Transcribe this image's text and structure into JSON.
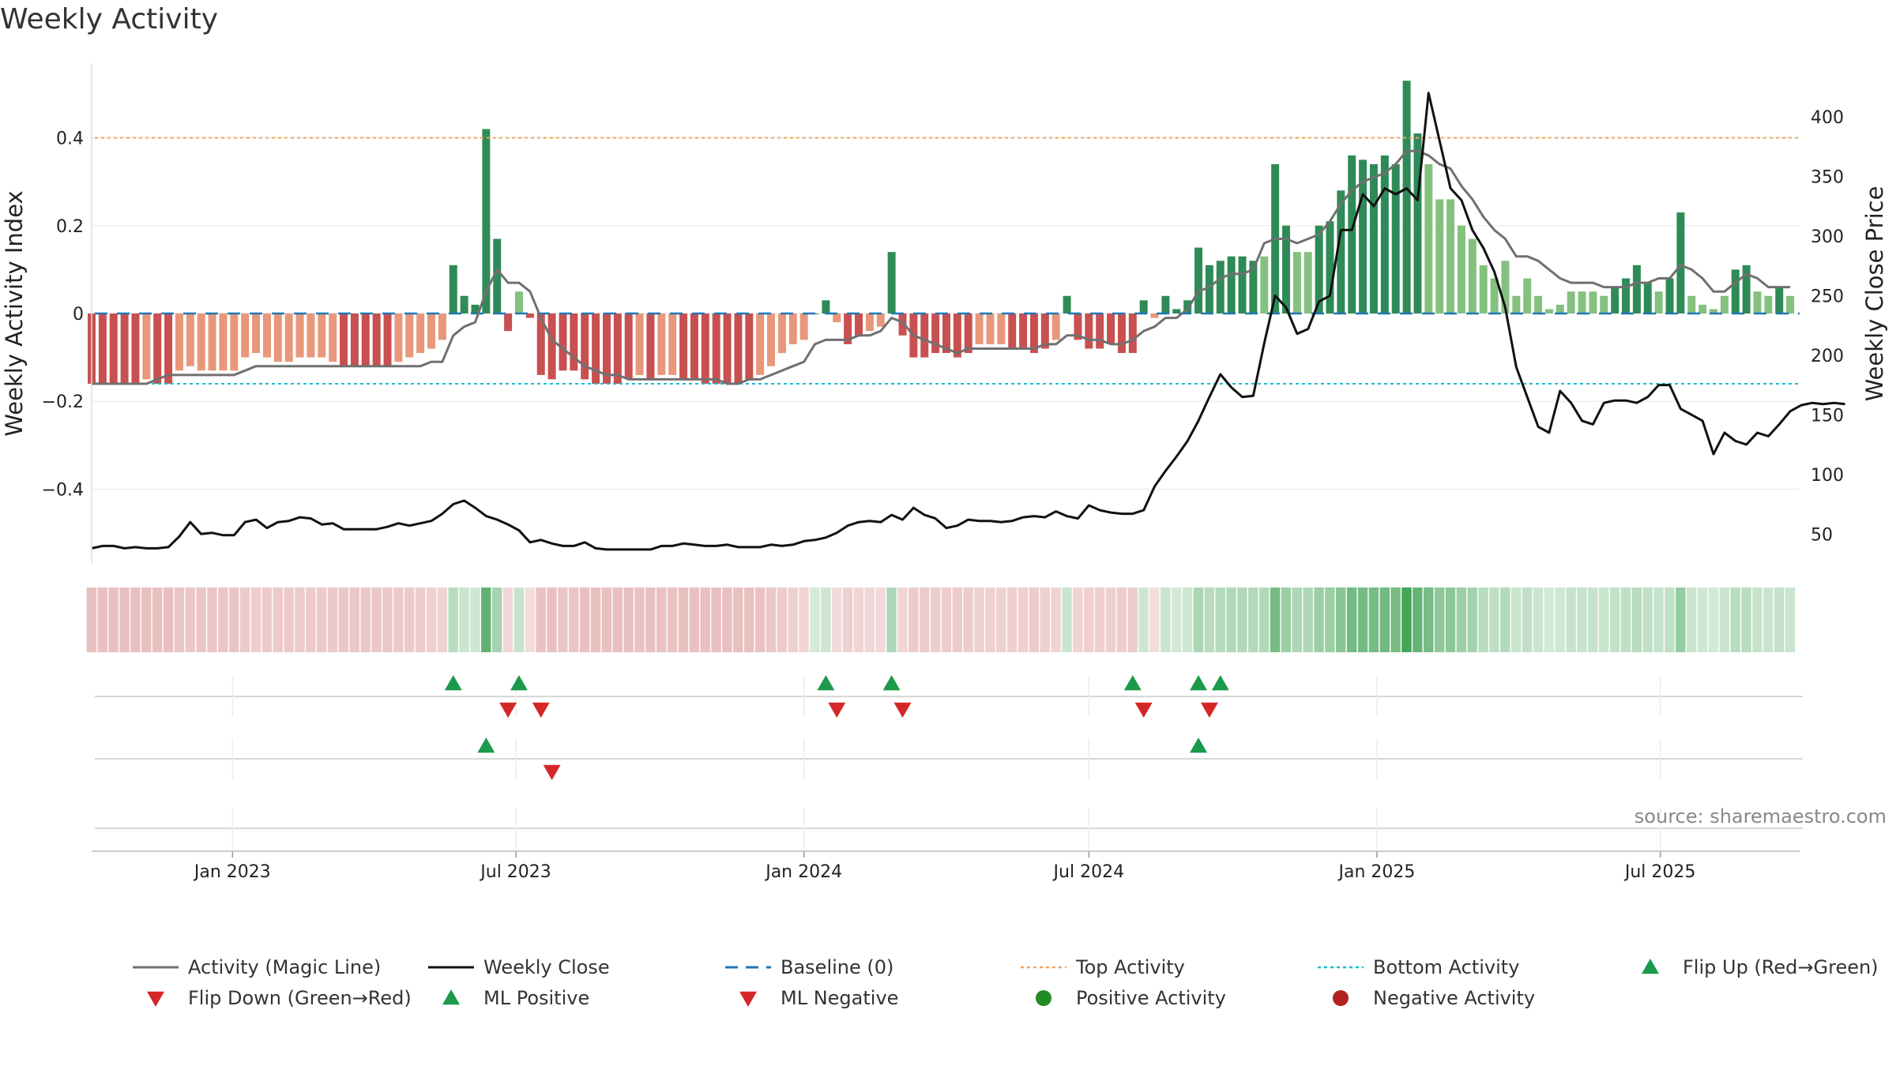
{
  "title": "Weekly Activity",
  "source": "source: sharemaestro.com",
  "colors": {
    "strong_green": "#2e8b57",
    "light_green": "#85c17e",
    "strong_red": "#c85050",
    "light_red": "#e8977a",
    "magic_line": "#707070",
    "close_line": "#111111",
    "baseline": "#1f77b4",
    "top_line": "#f4a460",
    "bottom_line": "#17becf",
    "flip_up": "#1a9a4a",
    "flip_down": "#d62728"
  },
  "chart_data": {
    "type": "bar",
    "title": "Weekly Activity",
    "ylabel": "Weekly Activity Index",
    "y2label": "Weekly Close Price",
    "ylim": [
      -0.57,
      0.57
    ],
    "y2lim": [
      25,
      445
    ],
    "yticks": [
      0.4,
      0.2,
      0,
      -0.2,
      -0.4
    ],
    "ytick_labels": [
      "0.4",
      "0.2",
      "0",
      "−0.2",
      "−0.4"
    ],
    "y2ticks": [
      400,
      350,
      300,
      250,
      200,
      150,
      100,
      50
    ],
    "y2tick_labels": [
      "400",
      "350",
      "300",
      "250",
      "200",
      "150",
      "100",
      "50"
    ],
    "xrange": [
      "2022-10-03",
      "2025-09-28"
    ],
    "xticks": [
      "2023-01-01",
      "2023-07-01",
      "2024-01-01",
      "2024-07-01",
      "2025-01-01",
      "2025-07-01"
    ],
    "xtick_labels": [
      "Jan 2023",
      "Jul 2023",
      "Jan 2024",
      "Jul 2024",
      "Jan 2025",
      "Jul 2025"
    ],
    "reference_lines": {
      "baseline": 0,
      "top_activity": 0.4,
      "bottom_activity": -0.16
    },
    "weeks_start": "2022-10-03",
    "activity": [
      -0.16,
      -0.16,
      -0.16,
      -0.16,
      -0.16,
      -0.15,
      -0.16,
      -0.16,
      -0.13,
      -0.12,
      -0.13,
      -0.13,
      -0.13,
      -0.13,
      -0.1,
      -0.09,
      -0.1,
      -0.11,
      -0.11,
      -0.1,
      -0.1,
      -0.1,
      -0.11,
      -0.12,
      -0.12,
      -0.12,
      -0.12,
      -0.12,
      -0.11,
      -0.1,
      -0.09,
      -0.08,
      -0.06,
      0.11,
      0.04,
      0.02,
      0.42,
      0.17,
      -0.04,
      0.05,
      -0.01,
      -0.14,
      -0.15,
      -0.13,
      -0.13,
      -0.15,
      -0.16,
      -0.16,
      -0.16,
      -0.15,
      -0.14,
      -0.15,
      -0.14,
      -0.14,
      -0.15,
      -0.15,
      -0.16,
      -0.16,
      -0.16,
      -0.16,
      -0.15,
      -0.14,
      -0.12,
      -0.09,
      -0.07,
      -0.06,
      0.0,
      0.03,
      -0.02,
      -0.07,
      -0.05,
      -0.04,
      -0.03,
      0.14,
      -0.05,
      -0.1,
      -0.1,
      -0.09,
      -0.09,
      -0.1,
      -0.09,
      -0.07,
      -0.07,
      -0.07,
      -0.08,
      -0.08,
      -0.09,
      -0.08,
      -0.06,
      0.04,
      -0.06,
      -0.08,
      -0.08,
      -0.07,
      -0.09,
      -0.09,
      0.03,
      -0.01,
      0.04,
      0.01,
      0.03,
      0.15,
      0.11,
      0.12,
      0.13,
      0.13,
      0.12,
      0.13,
      0.34,
      0.2,
      0.14,
      0.14,
      0.2,
      0.21,
      0.28,
      0.36,
      0.35,
      0.34,
      0.36,
      0.34,
      0.53,
      0.41,
      0.34,
      0.26,
      0.26,
      0.2,
      0.17,
      0.11,
      0.08,
      0.12,
      0.04,
      0.08,
      0.04,
      0.01,
      0.02,
      0.05,
      0.05,
      0.05,
      0.04,
      0.06,
      0.08,
      0.11,
      0.07,
      0.05,
      0.08,
      0.23,
      0.04,
      0.02,
      0.01,
      0.04,
      0.1,
      0.11,
      0.05,
      0.04,
      0.06,
      0.04
    ],
    "magic_line": [
      -0.16,
      -0.16,
      -0.16,
      -0.16,
      -0.16,
      -0.16,
      -0.15,
      -0.14,
      -0.14,
      -0.14,
      -0.14,
      -0.14,
      -0.14,
      -0.14,
      -0.13,
      -0.12,
      -0.12,
      -0.12,
      -0.12,
      -0.12,
      -0.12,
      -0.12,
      -0.12,
      -0.12,
      -0.12,
      -0.12,
      -0.12,
      -0.12,
      -0.12,
      -0.12,
      -0.12,
      -0.11,
      -0.11,
      -0.05,
      -0.03,
      -0.02,
      0.05,
      0.1,
      0.07,
      0.07,
      0.05,
      -0.01,
      -0.06,
      -0.08,
      -0.1,
      -0.12,
      -0.13,
      -0.14,
      -0.14,
      -0.15,
      -0.15,
      -0.15,
      -0.15,
      -0.15,
      -0.15,
      -0.15,
      -0.15,
      -0.15,
      -0.16,
      -0.16,
      -0.15,
      -0.15,
      -0.14,
      -0.13,
      -0.12,
      -0.11,
      -0.07,
      -0.06,
      -0.06,
      -0.06,
      -0.05,
      -0.05,
      -0.04,
      -0.01,
      -0.02,
      -0.05,
      -0.06,
      -0.07,
      -0.08,
      -0.09,
      -0.08,
      -0.08,
      -0.08,
      -0.08,
      -0.08,
      -0.08,
      -0.08,
      -0.07,
      -0.07,
      -0.05,
      -0.05,
      -0.06,
      -0.06,
      -0.07,
      -0.07,
      -0.06,
      -0.04,
      -0.03,
      -0.01,
      -0.01,
      0.01,
      0.05,
      0.06,
      0.08,
      0.09,
      0.09,
      0.1,
      0.16,
      0.17,
      0.17,
      0.16,
      0.17,
      0.18,
      0.21,
      0.25,
      0.28,
      0.3,
      0.31,
      0.32,
      0.34,
      0.37,
      0.37,
      0.36,
      0.34,
      0.33,
      0.29,
      0.26,
      0.22,
      0.19,
      0.17,
      0.13,
      0.13,
      0.12,
      0.1,
      0.08,
      0.07,
      0.07,
      0.07,
      0.06,
      0.06,
      0.06,
      0.07,
      0.07,
      0.08,
      0.08,
      0.11,
      0.1,
      0.08,
      0.05,
      0.05,
      0.07,
      0.09,
      0.08,
      0.06,
      0.06,
      0.06
    ],
    "weekly_close": [
      38,
      40,
      40,
      38,
      39,
      38,
      38,
      39,
      48,
      60,
      50,
      51,
      49,
      49,
      60,
      62,
      55,
      60,
      61,
      64,
      63,
      58,
      59,
      54,
      54,
      54,
      54,
      56,
      59,
      57,
      59,
      61,
      67,
      75,
      78,
      72,
      65,
      62,
      58,
      53,
      43,
      45,
      42,
      40,
      40,
      43,
      38,
      37,
      37,
      37,
      37,
      37,
      40,
      40,
      42,
      41,
      40,
      40,
      41,
      39,
      39,
      39,
      41,
      40,
      41,
      44,
      45,
      47,
      51,
      57,
      60,
      61,
      60,
      66,
      62,
      72,
      66,
      63,
      55,
      57,
      62,
      61,
      61,
      60,
      61,
      64,
      65,
      64,
      69,
      65,
      63,
      74,
      70,
      68,
      67,
      67,
      70,
      90,
      103,
      115,
      128,
      145,
      165,
      184,
      173,
      165,
      166,
      210,
      250,
      240,
      218,
      222,
      245,
      250,
      305,
      305,
      335,
      325,
      340,
      335,
      340,
      330,
      420,
      380,
      340,
      330,
      305,
      290,
      270,
      240,
      190,
      165,
      140,
      135,
      170,
      160,
      145,
      142,
      160,
      162,
      162,
      160,
      165,
      175,
      175,
      155,
      150,
      145,
      117,
      135,
      128,
      125,
      135,
      132,
      142,
      153,
      158,
      160,
      159,
      160,
      159
    ],
    "heat_strip": [
      -0.16,
      -0.16,
      -0.16,
      -0.16,
      -0.16,
      -0.15,
      -0.16,
      -0.16,
      -0.13,
      -0.12,
      -0.13,
      -0.13,
      -0.13,
      -0.13,
      -0.1,
      -0.09,
      -0.1,
      -0.11,
      -0.11,
      -0.1,
      -0.1,
      -0.1,
      -0.11,
      -0.12,
      -0.12,
      -0.12,
      -0.12,
      -0.12,
      -0.11,
      -0.1,
      -0.09,
      -0.08,
      -0.06,
      0.11,
      0.04,
      0.02,
      0.42,
      0.17,
      -0.04,
      0.05,
      -0.01,
      -0.14,
      -0.15,
      -0.13,
      -0.13,
      -0.15,
      -0.16,
      -0.16,
      -0.16,
      -0.15,
      -0.14,
      -0.15,
      -0.14,
      -0.14,
      -0.15,
      -0.15,
      -0.16,
      -0.16,
      -0.16,
      -0.16,
      -0.15,
      -0.14,
      -0.12,
      -0.09,
      -0.07,
      -0.06,
      0.0,
      0.03,
      -0.02,
      -0.07,
      -0.05,
      -0.04,
      -0.03,
      0.14,
      -0.05,
      -0.1,
      -0.1,
      -0.09,
      -0.09,
      -0.1,
      -0.09,
      -0.07,
      -0.07,
      -0.07,
      -0.08,
      -0.08,
      -0.09,
      -0.08,
      -0.06,
      0.04,
      -0.06,
      -0.08,
      -0.08,
      -0.07,
      -0.09,
      -0.09,
      0.03,
      -0.01,
      0.04,
      0.01,
      0.03,
      0.15,
      0.11,
      0.12,
      0.13,
      0.13,
      0.12,
      0.13,
      0.34,
      0.2,
      0.14,
      0.14,
      0.2,
      0.21,
      0.28,
      0.36,
      0.35,
      0.34,
      0.36,
      0.34,
      0.53,
      0.41,
      0.34,
      0.26,
      0.26,
      0.2,
      0.17,
      0.11,
      0.08,
      0.12,
      0.04,
      0.08,
      0.04,
      0.01,
      0.02,
      0.05,
      0.05,
      0.05,
      0.04,
      0.06,
      0.08,
      0.11,
      0.07,
      0.05,
      0.08,
      0.23,
      0.04,
      0.02,
      0.01,
      0.04,
      0.1,
      0.11,
      0.05,
      0.04,
      0.06,
      0.04
    ],
    "flip_up_weeks": [
      33,
      39,
      67,
      73,
      95,
      101,
      103
    ],
    "flip_down_weeks": [
      38,
      41,
      68,
      74,
      96,
      102
    ],
    "ml_positive_weeks": [
      36,
      101
    ],
    "ml_negative_weeks": [
      42
    ],
    "legend": [
      {
        "label": "Activity (Magic Line)",
        "kind": "line",
        "color": "#707070"
      },
      {
        "label": "Weekly Close",
        "kind": "line",
        "color": "#111111"
      },
      {
        "label": "Baseline (0)",
        "kind": "dash",
        "color": "#1f77b4"
      },
      {
        "label": "Top Activity",
        "kind": "dot",
        "color": "#f4a460"
      },
      {
        "label": "Bottom Activity",
        "kind": "dot",
        "color": "#17becf"
      },
      {
        "label": "Flip Up (Red→Green)",
        "kind": "tri-up",
        "color": "#1a9a4a"
      },
      {
        "label": "Flip Down (Green→Red)",
        "kind": "tri-down",
        "color": "#d62728"
      },
      {
        "label": "ML Positive",
        "kind": "tri-up",
        "color": "#1a9a4a"
      },
      {
        "label": "ML Negative",
        "kind": "tri-down",
        "color": "#d62728"
      },
      {
        "label": "Positive Activity",
        "kind": "circle",
        "color": "#228b22"
      },
      {
        "label": "Negative Activity",
        "kind": "circle",
        "color": "#b22222"
      }
    ]
  }
}
